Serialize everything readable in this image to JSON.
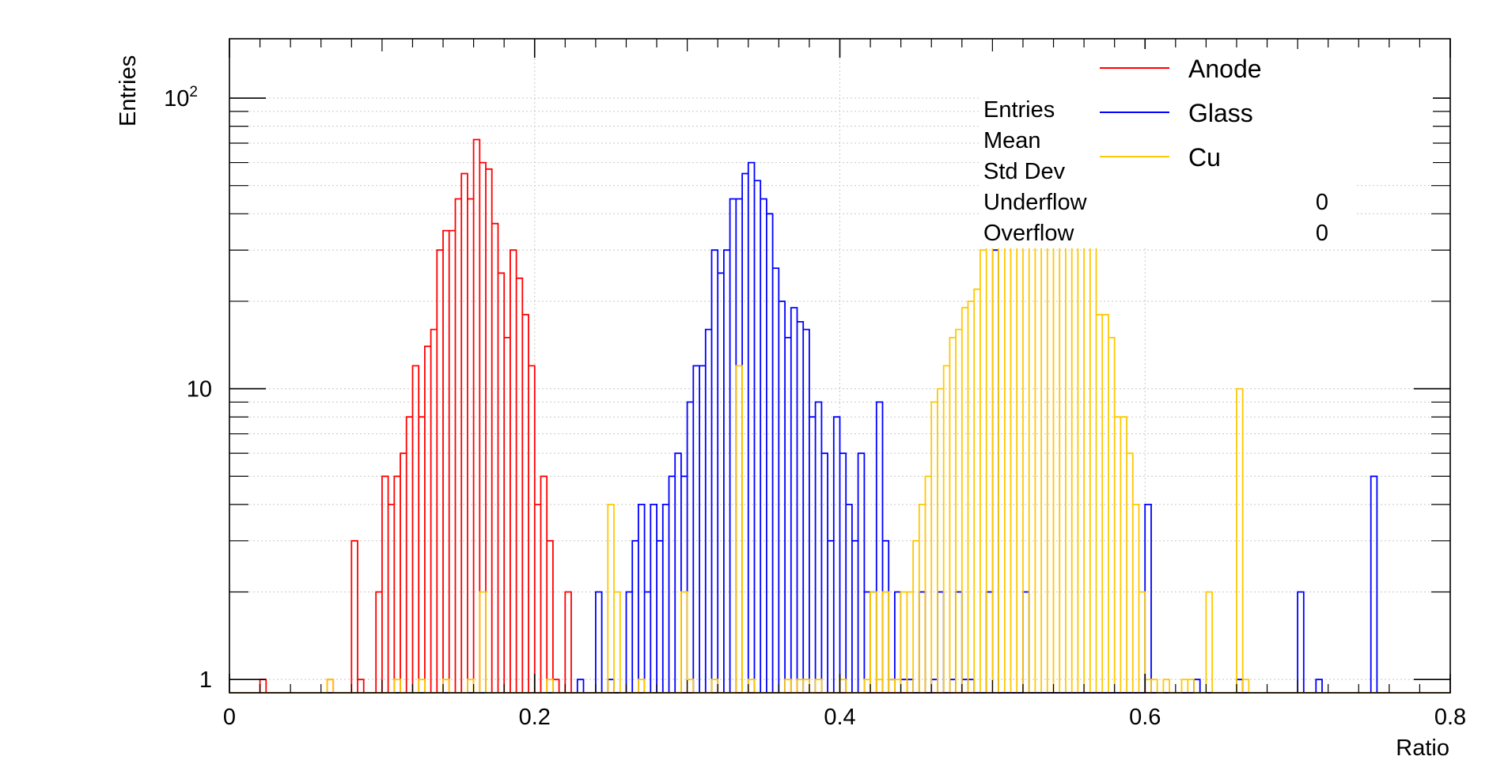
{
  "chart_data": {
    "type": "histogram",
    "xlabel": "Ratio",
    "ylabel": "Entries",
    "xlim": [
      0,
      0.8
    ],
    "ylim": [
      0.9,
      160
    ],
    "yscale": "log",
    "grid": true,
    "bin_width": 0.004,
    "x_ticks": [
      {
        "v": 0,
        "label": "0"
      },
      {
        "v": 0.2,
        "label": "0.2"
      },
      {
        "v": 0.4,
        "label": "0.4"
      },
      {
        "v": 0.6,
        "label": "0.6"
      },
      {
        "v": 0.8,
        "label": "0.8"
      }
    ],
    "y_ticks": [
      {
        "v": 1,
        "label": "1",
        "sup": ""
      },
      {
        "v": 10,
        "label": "10",
        "sup": ""
      },
      {
        "v": 100,
        "label": "10",
        "sup": "2"
      }
    ],
    "legend_position": "top-right",
    "series": [
      {
        "name": "Anode",
        "color": "#ff0000",
        "bins": [
          [
            0.02,
            1
          ],
          [
            0.064,
            1
          ],
          [
            0.08,
            3
          ],
          [
            0.084,
            1
          ],
          [
            0.096,
            2
          ],
          [
            0.1,
            5
          ],
          [
            0.104,
            4
          ],
          [
            0.108,
            5
          ],
          [
            0.112,
            6
          ],
          [
            0.116,
            8
          ],
          [
            0.12,
            12
          ],
          [
            0.124,
            8
          ],
          [
            0.128,
            14
          ],
          [
            0.132,
            16
          ],
          [
            0.136,
            30
          ],
          [
            0.14,
            35
          ],
          [
            0.144,
            35
          ],
          [
            0.148,
            45
          ],
          [
            0.152,
            55
          ],
          [
            0.156,
            45
          ],
          [
            0.16,
            72
          ],
          [
            0.164,
            60
          ],
          [
            0.168,
            57
          ],
          [
            0.172,
            37
          ],
          [
            0.176,
            25
          ],
          [
            0.18,
            15
          ],
          [
            0.184,
            30
          ],
          [
            0.188,
            24
          ],
          [
            0.192,
            18
          ],
          [
            0.196,
            12
          ],
          [
            0.2,
            4
          ],
          [
            0.204,
            5
          ],
          [
            0.208,
            3
          ],
          [
            0.212,
            1
          ],
          [
            0.22,
            2
          ]
        ]
      },
      {
        "name": "Glass",
        "color": "#0000ff",
        "bins": [
          [
            0.228,
            1
          ],
          [
            0.24,
            2
          ],
          [
            0.248,
            1
          ],
          [
            0.26,
            2
          ],
          [
            0.264,
            3
          ],
          [
            0.268,
            4
          ],
          [
            0.272,
            2
          ],
          [
            0.276,
            4
          ],
          [
            0.28,
            3
          ],
          [
            0.284,
            4
          ],
          [
            0.288,
            5
          ],
          [
            0.292,
            6
          ],
          [
            0.296,
            5
          ],
          [
            0.3,
            9
          ],
          [
            0.304,
            12
          ],
          [
            0.308,
            12
          ],
          [
            0.312,
            16
          ],
          [
            0.316,
            30
          ],
          [
            0.32,
            25
          ],
          [
            0.324,
            30
          ],
          [
            0.328,
            45
          ],
          [
            0.332,
            45
          ],
          [
            0.336,
            55
          ],
          [
            0.34,
            60
          ],
          [
            0.344,
            52
          ],
          [
            0.348,
            45
          ],
          [
            0.352,
            40
          ],
          [
            0.356,
            26
          ],
          [
            0.36,
            20
          ],
          [
            0.364,
            15
          ],
          [
            0.368,
            19
          ],
          [
            0.372,
            17
          ],
          [
            0.376,
            16
          ],
          [
            0.38,
            8
          ],
          [
            0.384,
            9
          ],
          [
            0.388,
            6
          ],
          [
            0.392,
            3
          ],
          [
            0.396,
            8
          ],
          [
            0.4,
            6
          ],
          [
            0.404,
            4
          ],
          [
            0.408,
            3
          ],
          [
            0.412,
            6
          ],
          [
            0.416,
            2
          ],
          [
            0.42,
            2
          ],
          [
            0.424,
            9
          ],
          [
            0.428,
            3
          ],
          [
            0.432,
            1
          ],
          [
            0.436,
            2
          ],
          [
            0.44,
            1
          ],
          [
            0.444,
            1
          ],
          [
            0.452,
            2
          ],
          [
            0.46,
            1
          ],
          [
            0.464,
            2
          ],
          [
            0.472,
            1
          ],
          [
            0.476,
            2
          ],
          [
            0.48,
            1
          ],
          [
            0.484,
            1
          ],
          [
            0.496,
            2
          ],
          [
            0.5,
            30
          ],
          [
            0.52,
            2
          ],
          [
            0.6,
            4
          ],
          [
            0.632,
            1
          ],
          [
            0.66,
            1
          ],
          [
            0.7,
            2
          ],
          [
            0.712,
            1
          ],
          [
            0.748,
            5
          ]
        ]
      },
      {
        "name": "Cu",
        "color": "#ffc800",
        "bins": [
          [
            0.064,
            1
          ],
          [
            0.108,
            1
          ],
          [
            0.124,
            1
          ],
          [
            0.14,
            1
          ],
          [
            0.156,
            1
          ],
          [
            0.164,
            2
          ],
          [
            0.208,
            1
          ],
          [
            0.248,
            4
          ],
          [
            0.252,
            2
          ],
          [
            0.268,
            1
          ],
          [
            0.296,
            2
          ],
          [
            0.3,
            1
          ],
          [
            0.316,
            1
          ],
          [
            0.332,
            12
          ],
          [
            0.34,
            1
          ],
          [
            0.364,
            1
          ],
          [
            0.372,
            1
          ],
          [
            0.376,
            1
          ],
          [
            0.384,
            1
          ],
          [
            0.4,
            1
          ],
          [
            0.416,
            1
          ],
          [
            0.42,
            2
          ],
          [
            0.424,
            1
          ],
          [
            0.428,
            2
          ],
          [
            0.432,
            1
          ],
          [
            0.436,
            1
          ],
          [
            0.44,
            2
          ],
          [
            0.444,
            2
          ],
          [
            0.448,
            3
          ],
          [
            0.452,
            4
          ],
          [
            0.456,
            5
          ],
          [
            0.46,
            9
          ],
          [
            0.464,
            10
          ],
          [
            0.468,
            12
          ],
          [
            0.472,
            15
          ],
          [
            0.476,
            16
          ],
          [
            0.48,
            19
          ],
          [
            0.484,
            20
          ],
          [
            0.488,
            22
          ],
          [
            0.492,
            30
          ],
          [
            0.496,
            34
          ],
          [
            0.5,
            40
          ],
          [
            0.504,
            44
          ],
          [
            0.508,
            48
          ],
          [
            0.512,
            50
          ],
          [
            0.516,
            51
          ],
          [
            0.52,
            55
          ],
          [
            0.524,
            53
          ],
          [
            0.528,
            45
          ],
          [
            0.532,
            44
          ],
          [
            0.536,
            50
          ],
          [
            0.54,
            58
          ],
          [
            0.544,
            52
          ],
          [
            0.548,
            52
          ],
          [
            0.552,
            57
          ],
          [
            0.556,
            57
          ],
          [
            0.56,
            63
          ],
          [
            0.564,
            38
          ],
          [
            0.568,
            18
          ],
          [
            0.572,
            18
          ],
          [
            0.576,
            15
          ],
          [
            0.58,
            8
          ],
          [
            0.584,
            8
          ],
          [
            0.588,
            6
          ],
          [
            0.592,
            4
          ],
          [
            0.596,
            2
          ],
          [
            0.6,
            1
          ],
          [
            0.604,
            1
          ],
          [
            0.612,
            1
          ],
          [
            0.624,
            1
          ],
          [
            0.628,
            1
          ],
          [
            0.64,
            2
          ],
          [
            0.66,
            10
          ],
          [
            0.664,
            1
          ]
        ]
      }
    ],
    "stats": [
      {
        "label": "Entries",
        "value": ""
      },
      {
        "label": "Mean",
        "value": ""
      },
      {
        "label": "Std Dev",
        "value": ""
      },
      {
        "label": "Underflow",
        "value": "0"
      },
      {
        "label": "Overflow",
        "value": "0"
      }
    ]
  }
}
